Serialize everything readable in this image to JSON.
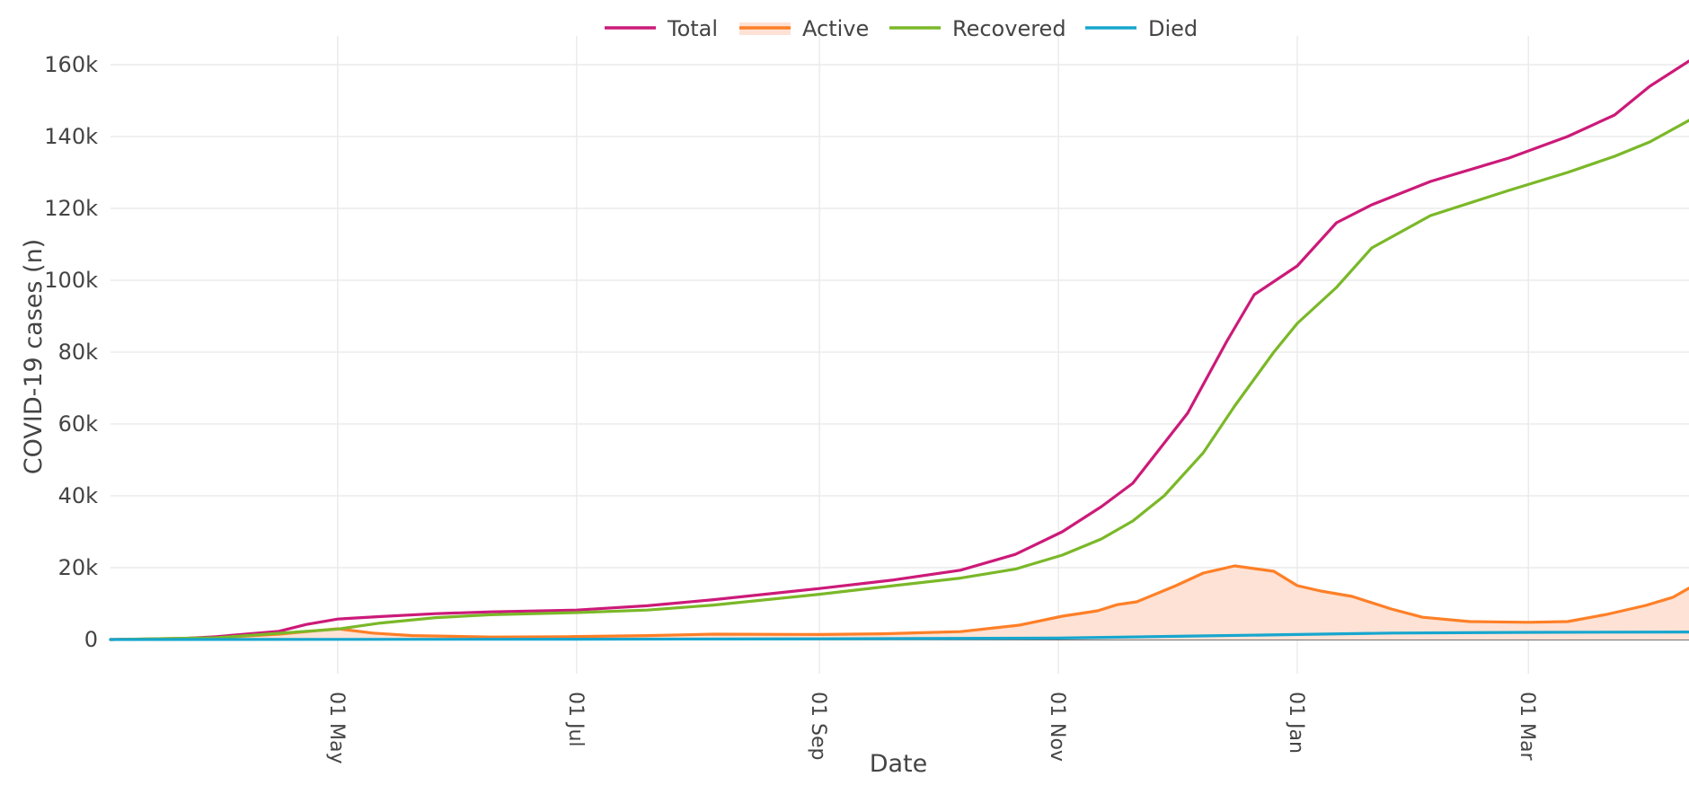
{
  "chart_data": {
    "type": "line",
    "title": "",
    "xlabel": "Date",
    "ylabel": "COVID-19 cases (n)",
    "x_ticks": [
      "01 May",
      "01 Jul",
      "01 Sep",
      "01 Nov",
      "01 Jan",
      "01 Mar"
    ],
    "x_tick_days": [
      41,
      102,
      164,
      225,
      286,
      345
    ],
    "y_ticks": [
      "0",
      "20k",
      "40k",
      "60k",
      "80k",
      "100k",
      "120k",
      "140k",
      "160k"
    ],
    "y_tick_values": [
      0,
      20000,
      40000,
      60000,
      80000,
      100000,
      120000,
      140000,
      160000
    ],
    "xlim_days": [
      -17,
      386
    ],
    "ylim": [
      -9500,
      168000
    ],
    "legend_position": "top-center",
    "x_unit": "days since 21 Mar",
    "series": [
      {
        "name": "Total",
        "color": "#cc1a79",
        "fill": false,
        "x": [
          -17,
          0,
          10,
          26,
          33,
          41,
          52,
          66,
          80,
          102,
          120,
          137,
          164,
          183,
          200,
          214,
          226,
          236,
          244,
          258,
          268,
          275,
          286,
          296,
          305,
          320,
          340,
          355,
          367,
          376,
          386
        ],
        "y": [
          0,
          200,
          800,
          2300,
          4200,
          5700,
          6400,
          7200,
          7700,
          8200,
          9400,
          11100,
          14200,
          16600,
          19300,
          23700,
          30000,
          37000,
          43500,
          63000,
          83000,
          96000,
          104000,
          116000,
          121000,
          127500,
          134000,
          140000,
          146000,
          154000,
          161000
        ]
      },
      {
        "name": "Active",
        "color": "#ff7f27",
        "fill": true,
        "fill_color": "#fde2d5",
        "x": [
          -17,
          10,
          26,
          33,
          41,
          50,
          60,
          80,
          100,
          120,
          137,
          164,
          180,
          200,
          215,
          226,
          235,
          240,
          245,
          255,
          262,
          270,
          280,
          286,
          292,
          300,
          310,
          318,
          330,
          345,
          355,
          365,
          375,
          382,
          386
        ],
        "y": [
          0,
          500,
          1500,
          2200,
          3000,
          1800,
          1100,
          700,
          800,
          1100,
          1500,
          1400,
          1600,
          2200,
          4000,
          6500,
          8000,
          9700,
          10500,
          15000,
          18500,
          20500,
          19000,
          15000,
          13500,
          12000,
          8500,
          6200,
          5000,
          4800,
          5000,
          7000,
          9500,
          11800,
          14300
        ]
      },
      {
        "name": "Recovered",
        "color": "#7ab828",
        "fill": false,
        "x": [
          -17,
          10,
          33,
          41,
          52,
          66,
          80,
          102,
          120,
          137,
          164,
          183,
          200,
          214,
          226,
          236,
          244,
          252,
          262,
          270,
          280,
          286,
          296,
          305,
          320,
          340,
          355,
          367,
          376,
          386
        ],
        "y": [
          0,
          500,
          2300,
          2900,
          4600,
          6100,
          6900,
          7500,
          8200,
          9600,
          12600,
          15000,
          17100,
          19600,
          23500,
          28000,
          33000,
          40000,
          52000,
          65000,
          80000,
          88000,
          98000,
          109000,
          118000,
          125000,
          130000,
          134500,
          138500,
          144500
        ]
      },
      {
        "name": "Died",
        "color": "#17a6ce",
        "fill": false,
        "x": [
          -17,
          41,
          102,
          164,
          225,
          255,
          286,
          310,
          345,
          386
        ],
        "y": [
          0,
          60,
          100,
          200,
          400,
          900,
          1400,
          1800,
          2000,
          2100
        ]
      }
    ]
  }
}
